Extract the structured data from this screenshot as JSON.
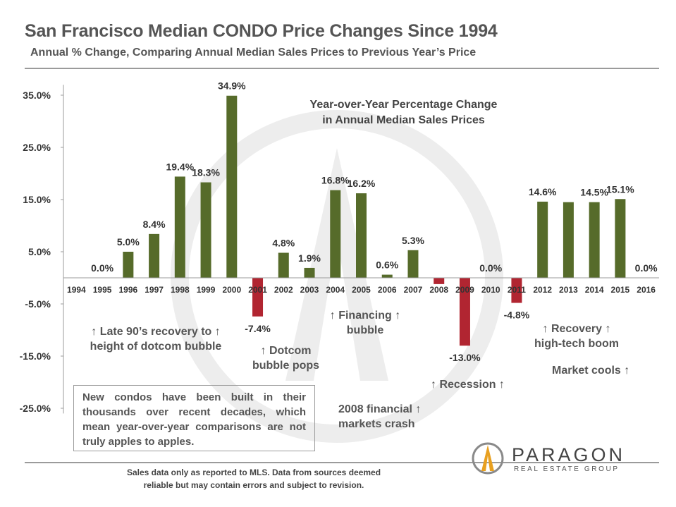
{
  "title": "San Francisco Median CONDO Price Changes Since 1994",
  "subtitle": "Annual % Change, Comparing Annual Median Sales Prices to Previous Year’s Price",
  "inset_title": [
    "Year-over-Year Percentage Change",
    "in Annual Median Sales Prices"
  ],
  "annotations": {
    "late90s": [
      "↑ Late 90’s recovery to ↑",
      "height of dotcom bubble"
    ],
    "dotcom": [
      "↑ Dotcom",
      "bubble pops"
    ],
    "financing": [
      "↑ Financing ↑",
      "bubble"
    ],
    "recession": "↑ Recession ↑",
    "crash": [
      "2008 financial ↑",
      "markets crash"
    ],
    "recovery": [
      "↑ Recovery ↑",
      "high-tech boom"
    ],
    "cools": "Market cools ↑"
  },
  "box_note": "New condos have been built in their thousands over recent decades, which mean year-over-year comparisons are not truly apples to apples.",
  "footer": [
    "Sales data only as reported to MLS. Data from sources deemed",
    "reliable but may contain errors and subject to revision."
  ],
  "logo": {
    "name": "PARAGON",
    "tagline": "REAL ESTATE GROUP"
  },
  "colors": {
    "positive": "#566b2a",
    "negative": "#b12531",
    "axis": "#9b9b9b",
    "text": "#333333",
    "watermark": "#ebebeb"
  },
  "chart_data": {
    "type": "bar",
    "categories": [
      "1994",
      "1995",
      "1996",
      "1997",
      "1998",
      "1999",
      "2000",
      "2001",
      "2002",
      "2003",
      "2004",
      "2005",
      "2006",
      "2007",
      "2008",
      "2009",
      "2010",
      "2011",
      "2012",
      "2013",
      "2014",
      "2015",
      "2016"
    ],
    "values": [
      null,
      0.0,
      5.0,
      8.4,
      19.4,
      18.3,
      34.9,
      -7.4,
      4.8,
      1.9,
      16.8,
      16.2,
      0.6,
      5.3,
      -1.2,
      -13.0,
      0.0,
      -4.8,
      14.6,
      14.5,
      14.5,
      15.1,
      0.0
    ],
    "labels": [
      "",
      "0.0%",
      "5.0%",
      "8.4%",
      "19.4%",
      "18.3%",
      "34.9%",
      "-7.4%",
      "4.8%",
      "1.9%",
      "16.8%",
      "16.2%",
      "0.6%",
      "5.3%",
      "",
      "-13.0%",
      "0.0%",
      "-4.8%",
      "14.6%",
      "",
      "14.5%",
      "15.1%",
      "0.0%"
    ],
    "yticks": [
      "35.0%",
      "25.0%",
      "15.0%",
      "5.0%",
      "-5.0%",
      "-15.0%",
      "-25.0%"
    ],
    "ytick_values": [
      35,
      25,
      15,
      5,
      -5,
      -15,
      -25
    ],
    "ylim": [
      -26,
      37
    ],
    "ylabel": "",
    "xlabel": "",
    "grid": false
  }
}
